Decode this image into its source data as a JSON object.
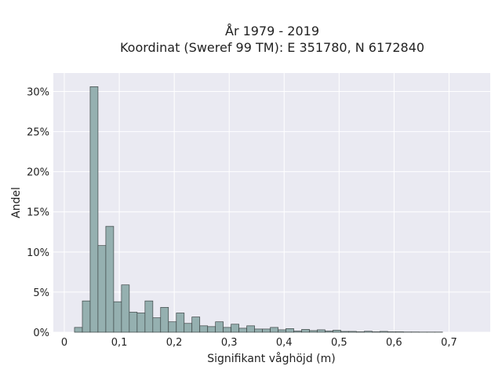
{
  "chart_data": {
    "type": "bar",
    "title": "År 1979 - 2019",
    "subtitle": "Koordinat (Sweref 99 TM): E 351780, N 6172840",
    "xlabel": "Signifikant våghöjd (m)",
    "ylabel": "Andel",
    "xlim": [
      -0.02,
      0.775
    ],
    "ylim": [
      0,
      32.3
    ],
    "bin_width": 0.01425,
    "x_ticks": [
      {
        "value": 0,
        "label": "0"
      },
      {
        "value": 0.1,
        "label": "0,1"
      },
      {
        "value": 0.2,
        "label": "0,2"
      },
      {
        "value": 0.3,
        "label": "0,3"
      },
      {
        "value": 0.4,
        "label": "0,4"
      },
      {
        "value": 0.5,
        "label": "0,5"
      },
      {
        "value": 0.6,
        "label": "0,6"
      },
      {
        "value": 0.7,
        "label": "0,7"
      }
    ],
    "y_ticks": [
      {
        "value": 0,
        "label": "0%"
      },
      {
        "value": 5,
        "label": "5%"
      },
      {
        "value": 10,
        "label": "10%"
      },
      {
        "value": 15,
        "label": "15%"
      },
      {
        "value": 20,
        "label": "20%"
      },
      {
        "value": 25,
        "label": "25%"
      },
      {
        "value": 30,
        "label": "30%"
      }
    ],
    "bins_start": [
      0.0185,
      0.0328,
      0.047,
      0.0612,
      0.0755,
      0.0898,
      0.104,
      0.1182,
      0.1325,
      0.1468,
      0.161,
      0.1752,
      0.1895,
      0.2038,
      0.218,
      0.2322,
      0.2465,
      0.2608,
      0.275,
      0.2892,
      0.3035,
      0.3178,
      0.332,
      0.3462,
      0.3605,
      0.3748,
      0.389,
      0.4032,
      0.4175,
      0.4318,
      0.446,
      0.4602,
      0.4745,
      0.4888,
      0.503,
      0.5172,
      0.5315,
      0.5458,
      0.56,
      0.5742,
      0.5885,
      0.6028,
      0.617,
      0.6312,
      0.6455,
      0.6598,
      0.674
    ],
    "values": [
      0.6,
      3.9,
      30.6,
      10.8,
      13.2,
      3.8,
      5.9,
      2.5,
      2.4,
      3.9,
      1.8,
      3.1,
      1.3,
      2.4,
      1.1,
      1.9,
      0.8,
      0.7,
      1.3,
      0.6,
      1.0,
      0.5,
      0.8,
      0.4,
      0.4,
      0.6,
      0.3,
      0.45,
      0.15,
      0.35,
      0.2,
      0.3,
      0.15,
      0.25,
      0.1,
      0.1,
      0.05,
      0.12,
      0.05,
      0.1,
      0.05,
      0.05,
      0.03,
      0.03,
      0.02,
      0.02,
      0.02
    ],
    "bar_color": "#95b0b0",
    "bar_edge_color": "#3d4545",
    "background_color": "#eaeaf2",
    "grid": true
  }
}
